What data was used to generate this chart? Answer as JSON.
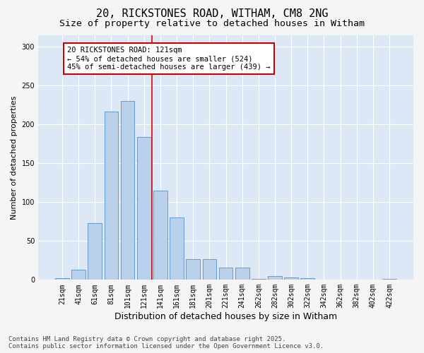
{
  "title": "20, RICKSTONES ROAD, WITHAM, CM8 2NG",
  "subtitle": "Size of property relative to detached houses in Witham",
  "xlabel": "Distribution of detached houses by size in Witham",
  "ylabel": "Number of detached properties",
  "categories": [
    "21sqm",
    "41sqm",
    "61sqm",
    "81sqm",
    "101sqm",
    "121sqm",
    "141sqm",
    "161sqm",
    "181sqm",
    "201sqm",
    "221sqm",
    "241sqm",
    "262sqm",
    "282sqm",
    "302sqm",
    "322sqm",
    "342sqm",
    "362sqm",
    "382sqm",
    "402sqm",
    "422sqm"
  ],
  "values": [
    2,
    13,
    73,
    217,
    230,
    184,
    115,
    80,
    27,
    27,
    16,
    16,
    1,
    5,
    3,
    2,
    0,
    0,
    0,
    0,
    1
  ],
  "bar_color": "#b8d0ea",
  "bar_edge_color": "#6699cc",
  "vline_x_index": 5,
  "vline_color": "#dd0000",
  "annotation_text": "20 RICKSTONES ROAD: 121sqm\n← 54% of detached houses are smaller (524)\n45% of semi-detached houses are larger (439) →",
  "annotation_box_facecolor": "#ffffff",
  "annotation_box_edgecolor": "#cc0000",
  "ylim": [
    0,
    315
  ],
  "yticks": [
    0,
    50,
    100,
    150,
    200,
    250,
    300
  ],
  "fig_bg_color": "#f5f5f5",
  "plot_bg_color": "#dce8f5",
  "grid_color": "#ffffff",
  "footer_line1": "Contains HM Land Registry data © Crown copyright and database right 2025.",
  "footer_line2": "Contains public sector information licensed under the Open Government Licence v3.0.",
  "title_fontsize": 11,
  "subtitle_fontsize": 9.5,
  "xlabel_fontsize": 9,
  "ylabel_fontsize": 8,
  "tick_fontsize": 7,
  "annotation_fontsize": 7.5,
  "footer_fontsize": 6.5
}
